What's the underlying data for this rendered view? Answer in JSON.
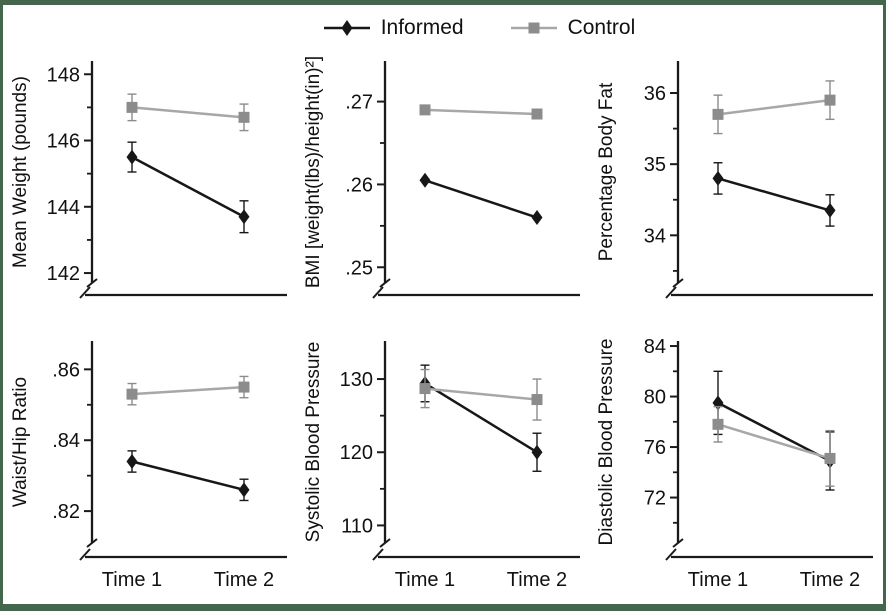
{
  "figure": {
    "background": "#ffffff",
    "border_color": "#44664d",
    "x_categories": [
      "Time 1",
      "Time 2"
    ]
  },
  "legend": {
    "items": [
      {
        "label": "Informed",
        "marker": "diamond"
      },
      {
        "label": "Control",
        "marker": "square"
      }
    ]
  },
  "colors": {
    "informed": "#171717",
    "control_marker": "#8c8c8c",
    "control_line": "#a7a7a7",
    "axis": "#1a1a1a",
    "text": "#111111"
  },
  "chart_data": [
    {
      "type": "line",
      "ylabel": "Mean Weight (pounds)",
      "x": [
        "Time 1",
        "Time 2"
      ],
      "show_x_labels": false,
      "ydomain": [
        141.7,
        148.4
      ],
      "yticks": {
        "values": [
          148,
          146,
          144,
          142
        ],
        "labels": [
          "148",
          "146",
          "144",
          "142"
        ]
      },
      "yticks_minor": [
        147,
        145,
        143
      ],
      "series": [
        {
          "name": "Informed",
          "marker": "diamond",
          "values": [
            145.5,
            143.7
          ],
          "errors": [
            0.45,
            0.48
          ]
        },
        {
          "name": "Control",
          "marker": "square",
          "values": [
            147.0,
            146.7
          ],
          "errors": [
            0.4,
            0.4
          ]
        }
      ]
    },
    {
      "type": "line",
      "ylabel": "BMI [weight(lbs)/height(in)²]",
      "x": [
        "Time 1",
        "Time 2"
      ],
      "show_x_labels": false,
      "ydomain": [
        0.2481,
        0.2749
      ],
      "yticks": {
        "values": [
          0.27,
          0.26,
          0.25
        ],
        "labels": [
          ".27",
          ".26",
          ".25"
        ]
      },
      "yticks_minor": [
        0.265,
        0.255
      ],
      "series": [
        {
          "name": "Informed",
          "marker": "diamond",
          "values": [
            0.2605,
            0.256
          ],
          "errors": [
            0,
            0
          ]
        },
        {
          "name": "Control",
          "marker": "square",
          "values": [
            0.269,
            0.2685
          ],
          "errors": [
            0,
            0
          ]
        }
      ]
    },
    {
      "type": "line",
      "ylabel": "Percentage Body Fat",
      "x": [
        "Time 1",
        "Time 2"
      ],
      "show_x_labels": false,
      "ydomain": [
        33.33,
        36.45
      ],
      "yticks": {
        "values": [
          36,
          35,
          34
        ],
        "labels": [
          "36",
          "35",
          "34"
        ]
      },
      "yticks_minor": [
        35.5,
        34.5,
        33.5
      ],
      "series": [
        {
          "name": "Informed",
          "marker": "diamond",
          "values": [
            34.8,
            34.35
          ],
          "errors": [
            0.22,
            0.22
          ]
        },
        {
          "name": "Control",
          "marker": "square",
          "values": [
            35.7,
            35.9
          ],
          "errors": [
            0.27,
            0.27
          ]
        }
      ]
    },
    {
      "type": "line",
      "ylabel": "Waist/Hip Ratio",
      "x": [
        "Time 1",
        "Time 2"
      ],
      "show_x_labels": true,
      "ydomain": [
        0.811,
        0.868
      ],
      "yticks": {
        "values": [
          0.86,
          0.84,
          0.82
        ],
        "labels": [
          ".86",
          ".84",
          ".82"
        ]
      },
      "yticks_minor": [
        0.85,
        0.83
      ],
      "series": [
        {
          "name": "Informed",
          "marker": "diamond",
          "values": [
            0.834,
            0.826
          ],
          "errors": [
            0.003,
            0.003
          ]
        },
        {
          "name": "Control",
          "marker": "square",
          "values": [
            0.853,
            0.855
          ],
          "errors": [
            0.003,
            0.003
          ]
        }
      ]
    },
    {
      "type": "line",
      "ylabel": "Systolic Blood Pressure",
      "x": [
        "Time 1",
        "Time 2"
      ],
      "show_x_labels": true,
      "ydomain": [
        107.6,
        135.2
      ],
      "yticks": {
        "values": [
          130,
          120,
          110
        ],
        "labels": [
          "130",
          "120",
          "110"
        ]
      },
      "yticks_minor": [
        125,
        115
      ],
      "series": [
        {
          "name": "Informed",
          "marker": "diamond",
          "values": [
            129.4,
            120.0
          ],
          "errors": [
            2.5,
            2.6
          ]
        },
        {
          "name": "Control",
          "marker": "square",
          "values": [
            128.7,
            127.2
          ],
          "errors": [
            2.6,
            2.8
          ]
        }
      ]
    },
    {
      "type": "line",
      "ylabel": "Diastolic Blood Pressure",
      "x": [
        "Time 1",
        "Time 2"
      ],
      "show_x_labels": true,
      "ydomain": [
        68.4,
        84.4
      ],
      "yticks": {
        "values": [
          84,
          80,
          76,
          72
        ],
        "labels": [
          "84",
          "80",
          "76",
          "72"
        ]
      },
      "yticks_minor": [
        82,
        78,
        74,
        70
      ],
      "series": [
        {
          "name": "Informed",
          "marker": "diamond",
          "values": [
            79.5,
            74.9
          ],
          "errors": [
            2.5,
            2.3
          ]
        },
        {
          "name": "Control",
          "marker": "square",
          "values": [
            77.8,
            75.1
          ],
          "errors": [
            1.4,
            2.2
          ]
        }
      ]
    }
  ]
}
